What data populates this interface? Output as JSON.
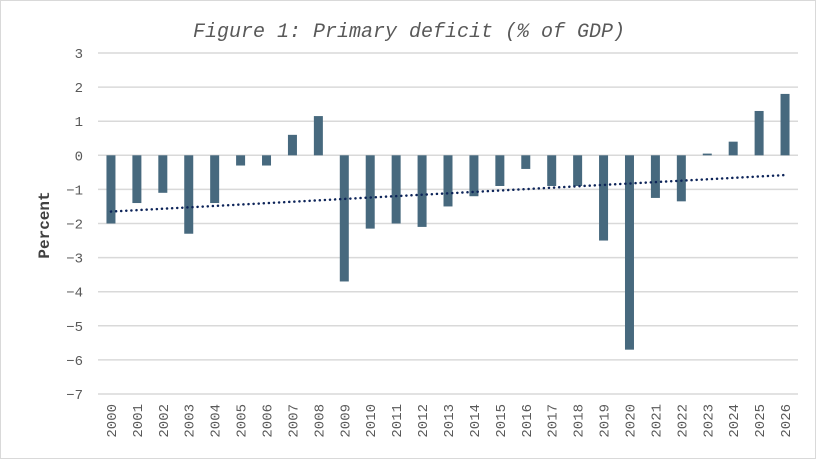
{
  "chart_data": {
    "type": "bar",
    "title": "Figure 1: Primary deficit (% of GDP)",
    "xlabel": "",
    "ylabel": "Percent",
    "ylim": [
      -7,
      3
    ],
    "yticks": [
      "3",
      "2",
      "1",
      "0",
      "−1",
      "−2",
      "−3",
      "−4",
      "−5",
      "−6",
      "−7"
    ],
    "ytick_values": [
      3,
      2,
      1,
      0,
      -1,
      -2,
      -3,
      -4,
      -5,
      -6,
      -7
    ],
    "grid": true,
    "categories": [
      "2000",
      "2001",
      "2002",
      "2003",
      "2004",
      "2005",
      "2006",
      "2007",
      "2008",
      "2009",
      "2010",
      "2011",
      "2012",
      "2013",
      "2014",
      "2015",
      "2016",
      "2017",
      "2018",
      "2019",
      "2020",
      "2021",
      "2022",
      "2023",
      "2024",
      "2025",
      "2026"
    ],
    "values": [
      -2.0,
      -1.4,
      -1.1,
      -2.3,
      -1.4,
      -0.3,
      -0.3,
      0.6,
      1.15,
      -3.7,
      -2.15,
      -2.0,
      -2.1,
      -1.5,
      -1.2,
      -0.9,
      -0.4,
      -0.9,
      -0.9,
      -2.5,
      -5.7,
      -1.25,
      -1.35,
      0.05,
      0.4,
      1.3,
      1.8
    ],
    "trendline": {
      "type": "linear",
      "start": -1.65,
      "end": -0.58
    },
    "bar_color": "#47697e",
    "trend_color": "#0d2459"
  }
}
